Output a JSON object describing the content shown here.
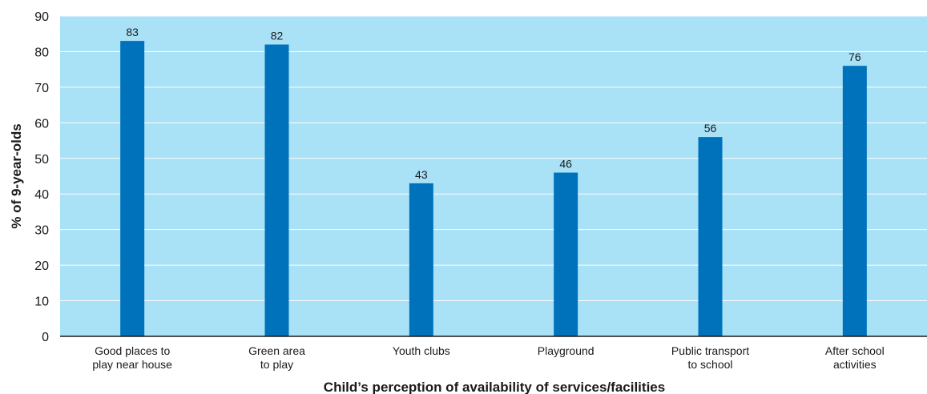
{
  "chart_data": {
    "type": "bar",
    "title": "",
    "xlabel": "Child’s perception of availability of services/facilities",
    "ylabel": "% of 9-year-olds",
    "ylim": [
      0,
      90
    ],
    "yticks": [
      0,
      10,
      20,
      30,
      40,
      50,
      60,
      70,
      80,
      90
    ],
    "grid": true,
    "categories": [
      [
        "Good places to",
        "play near house"
      ],
      [
        "Green area",
        "to play"
      ],
      [
        "Youth clubs"
      ],
      [
        "Playground"
      ],
      [
        "Public transport",
        "to school"
      ],
      [
        "After school",
        "activities"
      ]
    ],
    "values": [
      83,
      82,
      43,
      46,
      56,
      76
    ],
    "data_labels": [
      "83",
      "82",
      "43",
      "46",
      "56",
      "76"
    ],
    "colors": {
      "plot_background": "#a9e1f7",
      "bar": "#0072bc",
      "gridline": "#ffffff",
      "axis": "#1a1a1a"
    }
  }
}
